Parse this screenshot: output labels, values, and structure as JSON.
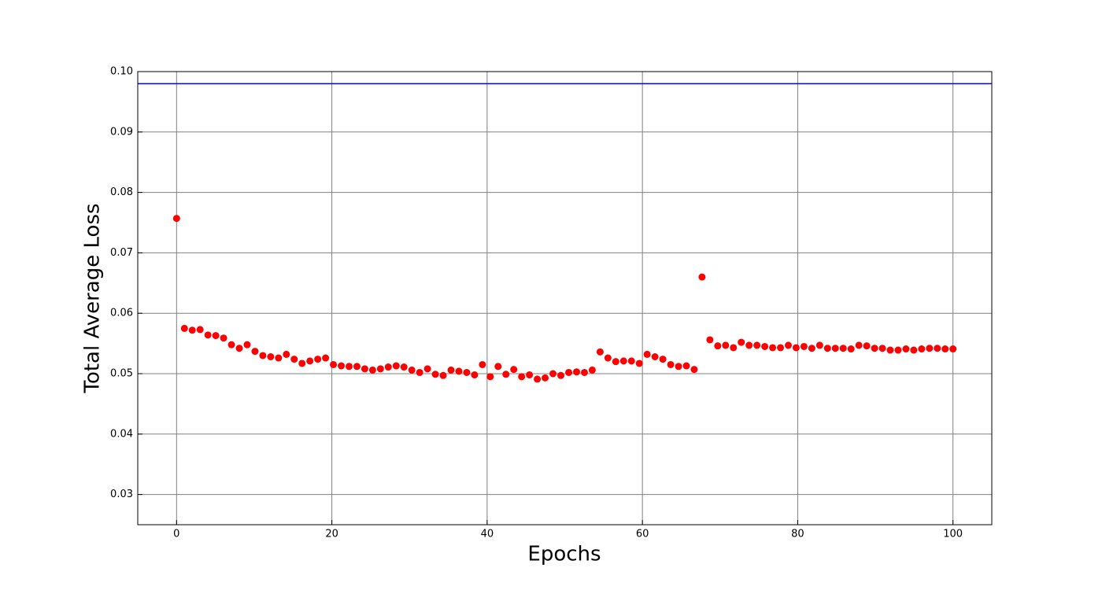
{
  "chart_data": {
    "type": "scatter",
    "xlabel": "Epochs",
    "ylabel": "Total Average Loss",
    "xlim": [
      -5,
      105
    ],
    "ylim": [
      0.025,
      0.1
    ],
    "xticks": [
      0,
      20,
      40,
      60,
      80,
      100
    ],
    "yticks": [
      0.03,
      0.04,
      0.05,
      0.06,
      0.07,
      0.08,
      0.09,
      {
        "value": 0.1,
        "label": "0.10"
      }
    ],
    "grid": true,
    "grid_color": "#808080",
    "hline": {
      "value": 0.098,
      "color": "#0000ff"
    },
    "x": [
      0,
      1.01,
      2.02,
      3.03,
      4.04,
      5.05,
      6.06,
      7.07,
      8.08,
      9.09,
      10.1,
      11.11,
      12.12,
      13.13,
      14.14,
      15.15,
      16.16,
      17.17,
      18.18,
      19.19,
      20.2,
      21.21,
      22.22,
      23.23,
      24.24,
      25.25,
      26.26,
      27.27,
      28.28,
      29.29,
      30.3,
      31.31,
      32.32,
      33.33,
      34.34,
      35.35,
      36.36,
      37.37,
      38.38,
      39.39,
      40.4,
      41.41,
      42.42,
      43.43,
      44.44,
      45.45,
      46.46,
      47.47,
      48.48,
      49.49,
      50.51,
      51.52,
      52.53,
      53.54,
      54.55,
      55.56,
      56.57,
      57.58,
      58.59,
      59.6,
      60.61,
      61.62,
      62.63,
      63.64,
      64.65,
      65.66,
      66.67,
      67.68,
      68.69,
      69.7,
      70.71,
      71.72,
      72.73,
      73.74,
      74.75,
      75.76,
      76.77,
      77.78,
      78.79,
      79.8,
      80.81,
      81.82,
      82.83,
      83.84,
      84.85,
      85.86,
      86.87,
      87.88,
      88.89,
      89.9,
      90.91,
      91.92,
      92.93,
      93.94,
      94.95,
      95.96,
      96.97,
      97.98,
      98.99,
      100
    ],
    "series": [
      {
        "color": "#ff0000",
        "values": [
          0.0757,
          0.0575,
          0.0572,
          0.0573,
          0.0564,
          0.0563,
          0.0559,
          0.0548,
          0.0542,
          0.0548,
          0.0537,
          0.053,
          0.0528,
          0.0526,
          0.0532,
          0.0524,
          0.0517,
          0.0521,
          0.0524,
          0.0526,
          0.0515,
          0.0513,
          0.0512,
          0.0512,
          0.0508,
          0.0506,
          0.0508,
          0.0511,
          0.0513,
          0.0511,
          0.0506,
          0.0502,
          0.0508,
          0.0499,
          0.0497,
          0.0506,
          0.0504,
          0.0502,
          0.0498,
          0.0515,
          0.0495,
          0.0512,
          0.0499,
          0.0507,
          0.0495,
          0.0498,
          0.0491,
          0.0493,
          0.05,
          0.0497,
          0.0502,
          0.0503,
          0.0502,
          0.0506,
          0.0536,
          0.0526,
          0.052,
          0.0521,
          0.0521,
          0.0517,
          0.0532,
          0.0528,
          0.0524,
          0.0515,
          0.0512,
          0.0513,
          0.0507,
          0.066,
          0.0556,
          0.0546,
          0.0547,
          0.0543,
          0.0552,
          0.0547,
          0.0547,
          0.0545,
          0.0543,
          0.0543,
          0.0547,
          0.0543,
          0.0545,
          0.0542,
          0.0547,
          0.0542,
          0.0542,
          0.0542,
          0.0541,
          0.0547,
          0.0546,
          0.0542,
          0.0542,
          0.0539,
          0.0539,
          0.0541,
          0.0539,
          0.0541,
          0.0542,
          0.0542,
          0.0541,
          0.0541
        ]
      }
    ]
  }
}
